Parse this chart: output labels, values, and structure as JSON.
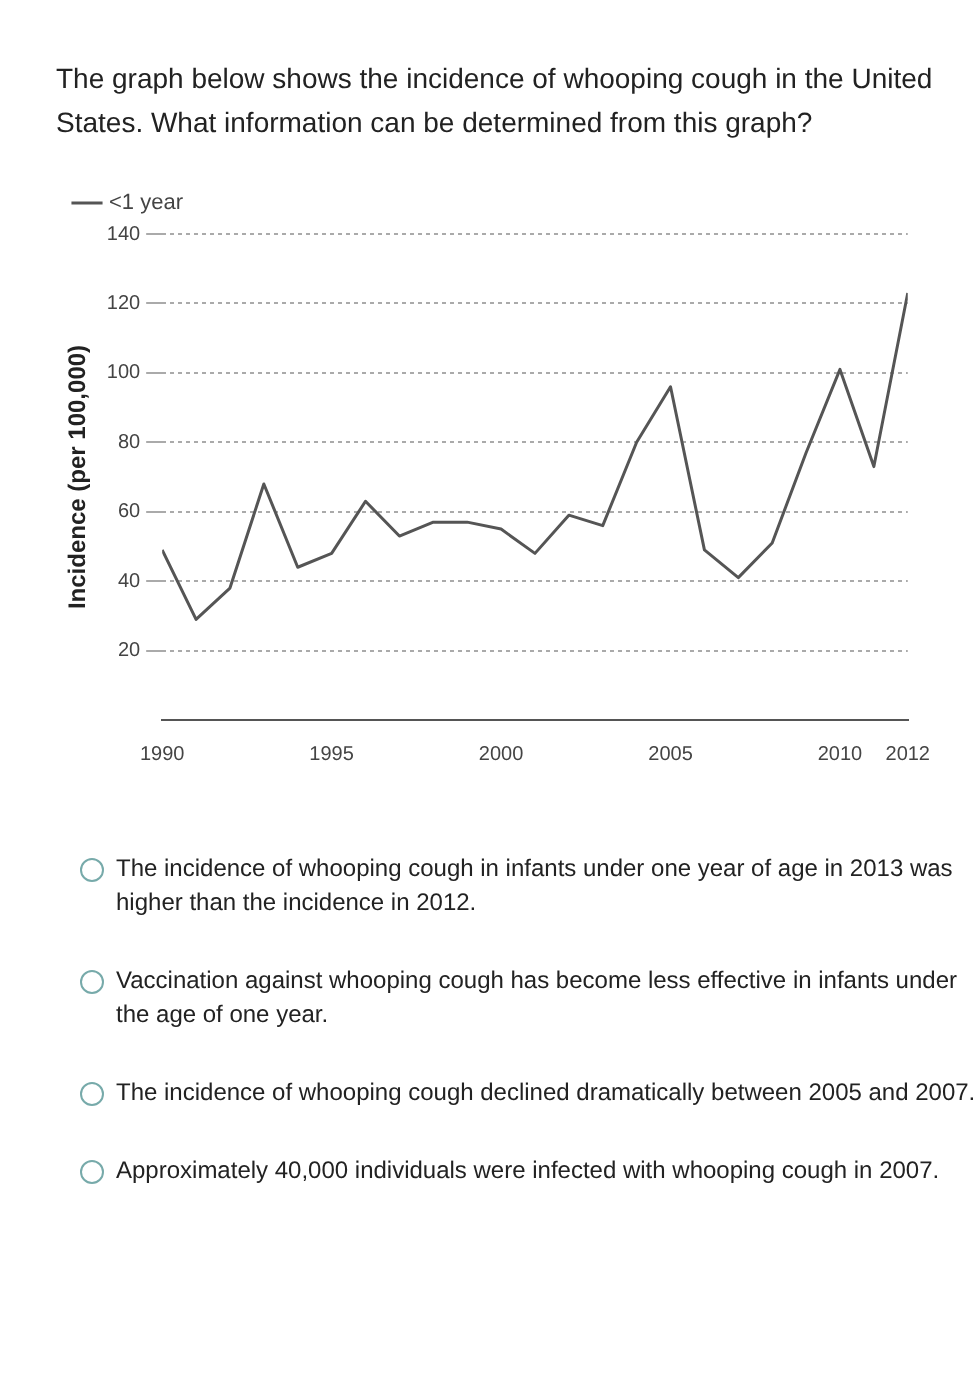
{
  "chart_data": {
    "type": "line",
    "title": "The graph below shows the incidence of whooping cough in the United States. What information can be determined from this graph?",
    "ylabel": "Incidence (per 100,000)",
    "x": [
      1990,
      1991,
      1992,
      1993,
      1994,
      1995,
      1996,
      1997,
      1998,
      1999,
      2000,
      2001,
      2002,
      2003,
      2004,
      2005,
      2006,
      2007,
      2008,
      2009,
      2010,
      2011,
      2012
    ],
    "series": [
      {
        "name": "<1 year",
        "color": "#555555",
        "values": [
          49,
          29,
          38,
          68,
          44,
          48,
          63,
          53,
          57,
          57,
          55,
          48,
          59,
          56,
          80,
          96,
          49,
          41,
          51,
          77,
          101,
          73,
          123
        ]
      }
    ],
    "xlim": [
      1990,
      2012
    ],
    "xticks": [
      1990,
      1995,
      2000,
      2005,
      2010,
      2012
    ],
    "ylim": [
      0,
      140
    ],
    "yticks": [
      20,
      40,
      60,
      80,
      100,
      120,
      140
    ],
    "grid": "y",
    "legend": "top left",
    "marker": "none",
    "line_style": "solid",
    "annotations": [
      "The incidence of whooping cough in infants under one year of age in 2013 was higher than the incidence in 2012.",
      "Vaccination against whooping cough has become less effective in infants under the age of one year.",
      "The incidence of whooping cough declined dramatically between 2005 and 2007.",
      "Approximately 40,000 individuals were infected with whooping cough in 2007."
    ]
  }
}
